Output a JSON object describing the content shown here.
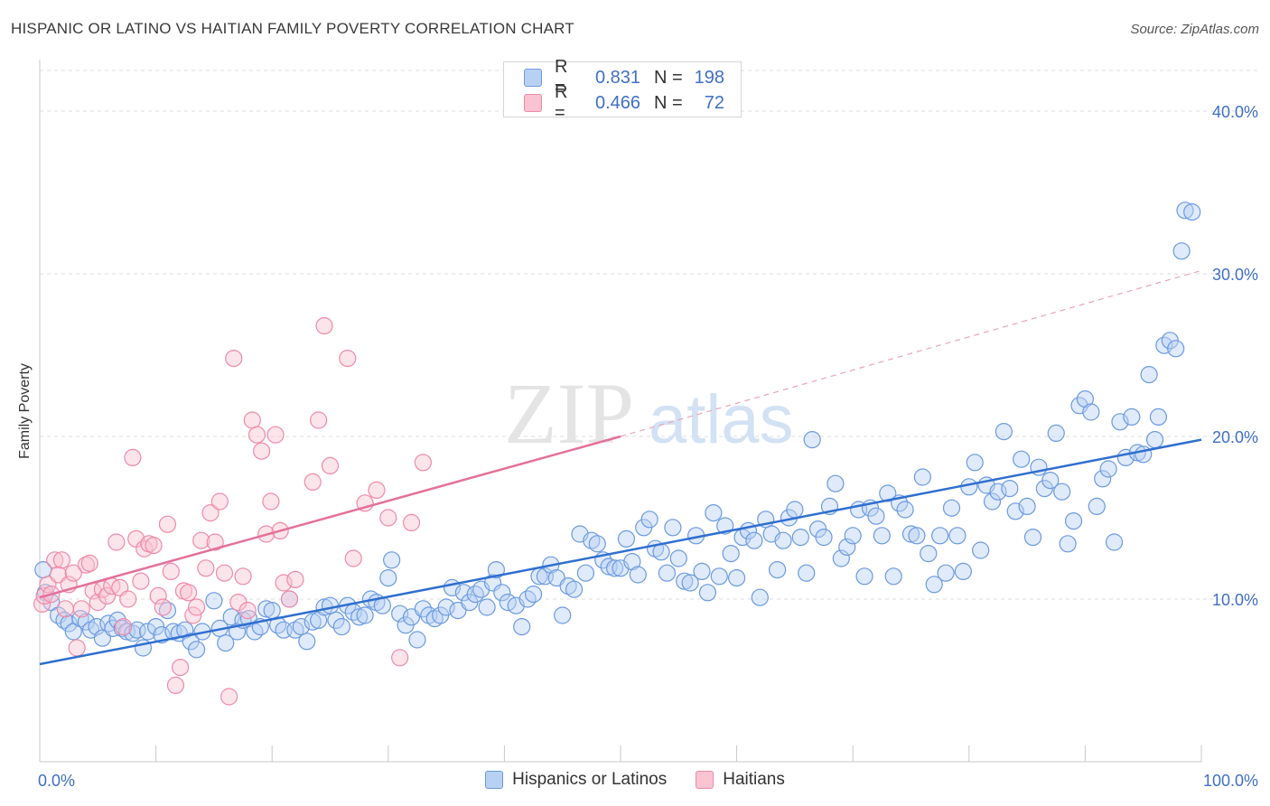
{
  "title": "HISPANIC OR LATINO VS HAITIAN FAMILY POVERTY CORRELATION CHART",
  "source": "Source: ZipAtlas.com",
  "watermark": {
    "zip": "ZIP",
    "atlas": "atlas"
  },
  "legend_top": [
    {
      "r_label": "R =",
      "r_value": "0.831",
      "n_label": "N =",
      "n_value": "198",
      "color": "#b8d1f3",
      "stroke": "#6b9ae0"
    },
    {
      "r_label": "R =",
      "r_value": "0.466",
      "n_label": "N =",
      "n_value": "72",
      "color": "#f9c3d2",
      "stroke": "#ee8aa8"
    }
  ],
  "legend_bottom": [
    {
      "label": "Hispanics or Latinos",
      "color": "#b8d1f3",
      "stroke": "#6b9ae0"
    },
    {
      "label": "Haitians",
      "color": "#f9c3d2",
      "stroke": "#ee8aa8"
    }
  ],
  "chart_data": {
    "type": "scatter",
    "title": "HISPANIC OR LATINO VS HAITIAN FAMILY POVERTY CORRELATION CHART",
    "xlabel": "",
    "ylabel": "Family Poverty",
    "xlim": [
      0,
      100
    ],
    "ylim": [
      0,
      42.5
    ],
    "x_tick_labels": [
      "0.0%",
      "100.0%"
    ],
    "y_ticks": [
      10,
      20,
      30,
      40
    ],
    "y_tick_labels": [
      "10.0%",
      "20.0%",
      "30.0%",
      "40.0%"
    ],
    "grid": true,
    "legend_placement": "top-center",
    "series": [
      {
        "name": "Hispanics or Latinos",
        "color": "#6b9ae0",
        "trend": {
          "x0": 0,
          "y0": 6.0,
          "x1": 100,
          "y1": 19.8,
          "color": "#2f6fd0"
        },
        "points": [
          [
            0.3,
            11.8
          ],
          [
            0.5,
            10.4
          ],
          [
            1.0,
            9.8
          ],
          [
            1.6,
            9.0
          ],
          [
            2.1,
            8.7
          ],
          [
            2.5,
            8.5
          ],
          [
            2.9,
            8.0
          ],
          [
            3.5,
            8.8
          ],
          [
            4.0,
            8.6
          ],
          [
            4.4,
            8.1
          ],
          [
            4.9,
            8.3
          ],
          [
            5.4,
            7.6
          ],
          [
            5.9,
            8.5
          ],
          [
            6.3,
            8.2
          ],
          [
            6.7,
            8.7
          ],
          [
            7.1,
            8.2
          ],
          [
            7.5,
            8.0
          ],
          [
            8.0,
            7.9
          ],
          [
            8.4,
            8.1
          ],
          [
            8.9,
            7.0
          ],
          [
            9.3,
            8.0
          ],
          [
            10.0,
            8.3
          ],
          [
            10.5,
            7.8
          ],
          [
            11.0,
            9.3
          ],
          [
            11.5,
            8.0
          ],
          [
            12.0,
            7.9
          ],
          [
            12.5,
            8.1
          ],
          [
            13.0,
            7.4
          ],
          [
            13.5,
            6.9
          ],
          [
            14.0,
            8.0
          ],
          [
            15.0,
            9.9
          ],
          [
            15.5,
            8.2
          ],
          [
            16.0,
            7.3
          ],
          [
            16.5,
            8.9
          ],
          [
            17.0,
            8.0
          ],
          [
            17.5,
            8.7
          ],
          [
            18.0,
            8.8
          ],
          [
            18.5,
            8.0
          ],
          [
            19.0,
            8.3
          ],
          [
            19.5,
            9.4
          ],
          [
            20.0,
            9.3
          ],
          [
            20.5,
            8.4
          ],
          [
            21.0,
            8.1
          ],
          [
            21.5,
            10.0
          ],
          [
            22.0,
            8.1
          ],
          [
            22.5,
            8.3
          ],
          [
            23.0,
            7.4
          ],
          [
            23.5,
            8.6
          ],
          [
            24.0,
            8.7
          ],
          [
            24.5,
            9.5
          ],
          [
            25.0,
            9.6
          ],
          [
            25.5,
            8.7
          ],
          [
            26.0,
            8.3
          ],
          [
            26.5,
            9.6
          ],
          [
            27.0,
            9.2
          ],
          [
            27.5,
            8.9
          ],
          [
            28.0,
            9.0
          ],
          [
            28.5,
            10.0
          ],
          [
            29.0,
            9.8
          ],
          [
            29.5,
            9.6
          ],
          [
            30.0,
            11.3
          ],
          [
            30.3,
            12.4
          ],
          [
            31.0,
            9.1
          ],
          [
            31.5,
            8.4
          ],
          [
            32.0,
            8.9
          ],
          [
            32.5,
            7.5
          ],
          [
            33.0,
            9.4
          ],
          [
            33.5,
            9.0
          ],
          [
            34.0,
            8.8
          ],
          [
            34.5,
            9.0
          ],
          [
            35.0,
            9.5
          ],
          [
            35.5,
            10.7
          ],
          [
            36.0,
            9.3
          ],
          [
            36.5,
            10.4
          ],
          [
            37.0,
            9.8
          ],
          [
            37.5,
            10.3
          ],
          [
            38.0,
            10.6
          ],
          [
            38.5,
            9.5
          ],
          [
            39.0,
            11.0
          ],
          [
            39.3,
            11.8
          ],
          [
            39.8,
            10.4
          ],
          [
            40.3,
            9.8
          ],
          [
            41.0,
            9.6
          ],
          [
            41.5,
            8.3
          ],
          [
            42.0,
            10.0
          ],
          [
            42.5,
            10.3
          ],
          [
            43.0,
            11.4
          ],
          [
            43.5,
            11.4
          ],
          [
            44.0,
            12.1
          ],
          [
            44.5,
            11.3
          ],
          [
            45.0,
            9.0
          ],
          [
            45.5,
            10.8
          ],
          [
            46.0,
            10.6
          ],
          [
            46.5,
            14.0
          ],
          [
            47.0,
            11.6
          ],
          [
            47.5,
            13.6
          ],
          [
            48.0,
            13.4
          ],
          [
            48.5,
            12.4
          ],
          [
            49.0,
            12.0
          ],
          [
            49.5,
            11.9
          ],
          [
            50.0,
            11.9
          ],
          [
            50.5,
            13.7
          ],
          [
            51.0,
            12.3
          ],
          [
            51.5,
            11.5
          ],
          [
            52.0,
            14.4
          ],
          [
            52.5,
            14.9
          ],
          [
            53.0,
            13.1
          ],
          [
            53.5,
            12.9
          ],
          [
            54.0,
            11.6
          ],
          [
            54.5,
            14.4
          ],
          [
            55.0,
            12.5
          ],
          [
            55.5,
            11.1
          ],
          [
            56.0,
            11.0
          ],
          [
            56.5,
            13.9
          ],
          [
            57.0,
            11.7
          ],
          [
            57.5,
            10.4
          ],
          [
            58.0,
            15.3
          ],
          [
            58.5,
            11.4
          ],
          [
            59.0,
            14.5
          ],
          [
            59.5,
            12.8
          ],
          [
            60.0,
            11.3
          ],
          [
            60.5,
            13.8
          ],
          [
            61.0,
            14.2
          ],
          [
            61.5,
            13.6
          ],
          [
            62.0,
            10.1
          ],
          [
            62.5,
            14.9
          ],
          [
            63.0,
            14.0
          ],
          [
            63.5,
            11.8
          ],
          [
            64.0,
            13.6
          ],
          [
            64.5,
            15.0
          ],
          [
            65.0,
            15.5
          ],
          [
            65.5,
            13.8
          ],
          [
            66.0,
            11.6
          ],
          [
            66.5,
            19.8
          ],
          [
            67.0,
            14.3
          ],
          [
            67.5,
            13.8
          ],
          [
            68.0,
            15.7
          ],
          [
            68.5,
            17.1
          ],
          [
            69.0,
            12.5
          ],
          [
            69.5,
            13.2
          ],
          [
            70.0,
            13.9
          ],
          [
            70.5,
            15.5
          ],
          [
            71.0,
            11.4
          ],
          [
            71.5,
            15.6
          ],
          [
            72.0,
            15.1
          ],
          [
            72.5,
            13.9
          ],
          [
            73.0,
            16.5
          ],
          [
            73.5,
            11.4
          ],
          [
            74.0,
            15.9
          ],
          [
            74.5,
            15.5
          ],
          [
            75.0,
            14.0
          ],
          [
            75.5,
            13.9
          ],
          [
            76.0,
            17.5
          ],
          [
            76.5,
            12.8
          ],
          [
            77.0,
            10.9
          ],
          [
            77.5,
            13.9
          ],
          [
            78.0,
            11.6
          ],
          [
            78.5,
            15.6
          ],
          [
            79.0,
            13.9
          ],
          [
            79.5,
            11.7
          ],
          [
            80.0,
            16.9
          ],
          [
            80.5,
            18.4
          ],
          [
            81.0,
            13.0
          ],
          [
            81.5,
            17.0
          ],
          [
            82.0,
            16.0
          ],
          [
            82.5,
            16.6
          ],
          [
            83.0,
            20.3
          ],
          [
            83.5,
            16.8
          ],
          [
            84.0,
            15.4
          ],
          [
            84.5,
            18.6
          ],
          [
            85.0,
            15.7
          ],
          [
            85.5,
            13.8
          ],
          [
            86.0,
            18.1
          ],
          [
            86.5,
            16.8
          ],
          [
            87.0,
            17.3
          ],
          [
            87.5,
            20.2
          ],
          [
            88.0,
            16.6
          ],
          [
            88.5,
            13.4
          ],
          [
            89.0,
            14.8
          ],
          [
            89.5,
            21.9
          ],
          [
            90.0,
            22.3
          ],
          [
            90.5,
            21.5
          ],
          [
            91.0,
            15.7
          ],
          [
            91.5,
            17.4
          ],
          [
            92.0,
            18.0
          ],
          [
            92.5,
            13.5
          ],
          [
            93.0,
            20.9
          ],
          [
            93.5,
            18.7
          ],
          [
            94.0,
            21.2
          ],
          [
            94.5,
            19.0
          ],
          [
            95.0,
            18.9
          ],
          [
            95.5,
            23.8
          ],
          [
            96.0,
            19.8
          ],
          [
            96.3,
            21.2
          ],
          [
            96.8,
            25.6
          ],
          [
            97.3,
            25.9
          ],
          [
            97.8,
            25.4
          ],
          [
            98.3,
            31.4
          ],
          [
            98.6,
            33.9
          ],
          [
            99.2,
            33.8
          ]
        ]
      },
      {
        "name": "Haitians",
        "color": "#ee8aa8",
        "trend": {
          "x0": 0,
          "y0": 10.1,
          "x1": 50,
          "y1": 20.0,
          "color": "#e4719a"
        },
        "trend_extension": {
          "x0": 50,
          "y0": 20.0,
          "x1": 100,
          "y1": 30.2
        },
        "points": [
          [
            0.2,
            9.7
          ],
          [
            0.4,
            10.2
          ],
          [
            0.7,
            10.9
          ],
          [
            1.0,
            10.3
          ],
          [
            1.3,
            12.4
          ],
          [
            1.6,
            11.5
          ],
          [
            1.9,
            12.4
          ],
          [
            2.2,
            9.4
          ],
          [
            2.5,
            10.9
          ],
          [
            2.9,
            11.6
          ],
          [
            3.2,
            7.0
          ],
          [
            3.6,
            9.4
          ],
          [
            4.0,
            12.1
          ],
          [
            4.3,
            12.2
          ],
          [
            4.6,
            10.5
          ],
          [
            5.0,
            9.8
          ],
          [
            5.4,
            10.6
          ],
          [
            5.8,
            10.2
          ],
          [
            6.2,
            10.8
          ],
          [
            6.6,
            13.5
          ],
          [
            6.9,
            10.7
          ],
          [
            7.2,
            8.3
          ],
          [
            7.6,
            10.0
          ],
          [
            8.0,
            18.7
          ],
          [
            8.3,
            13.7
          ],
          [
            8.7,
            11.1
          ],
          [
            9.0,
            13.1
          ],
          [
            9.4,
            13.4
          ],
          [
            9.8,
            13.3
          ],
          [
            10.2,
            10.2
          ],
          [
            10.6,
            9.5
          ],
          [
            11.0,
            14.6
          ],
          [
            11.3,
            11.7
          ],
          [
            11.7,
            4.7
          ],
          [
            12.1,
            5.8
          ],
          [
            12.4,
            10.5
          ],
          [
            12.8,
            10.4
          ],
          [
            13.2,
            9.0
          ],
          [
            13.5,
            9.5
          ],
          [
            13.9,
            13.6
          ],
          [
            14.3,
            11.9
          ],
          [
            14.7,
            15.3
          ],
          [
            15.1,
            13.5
          ],
          [
            15.5,
            16.0
          ],
          [
            15.9,
            11.6
          ],
          [
            16.3,
            4.0
          ],
          [
            16.7,
            24.8
          ],
          [
            17.1,
            9.8
          ],
          [
            17.5,
            11.4
          ],
          [
            17.9,
            9.3
          ],
          [
            18.3,
            21.0
          ],
          [
            18.7,
            20.1
          ],
          [
            19.1,
            19.1
          ],
          [
            19.5,
            14.0
          ],
          [
            19.9,
            16.0
          ],
          [
            20.3,
            20.1
          ],
          [
            20.7,
            14.2
          ],
          [
            21.0,
            11.0
          ],
          [
            21.5,
            10.0
          ],
          [
            22.0,
            11.2
          ],
          [
            23.5,
            17.2
          ],
          [
            24.0,
            21.0
          ],
          [
            24.5,
            26.8
          ],
          [
            25.0,
            18.2
          ],
          [
            26.5,
            24.8
          ],
          [
            27.0,
            12.5
          ],
          [
            28.0,
            15.9
          ],
          [
            29.0,
            16.7
          ],
          [
            30.0,
            15.0
          ],
          [
            31.0,
            6.4
          ],
          [
            32.0,
            14.7
          ],
          [
            33.0,
            18.4
          ]
        ]
      }
    ]
  }
}
